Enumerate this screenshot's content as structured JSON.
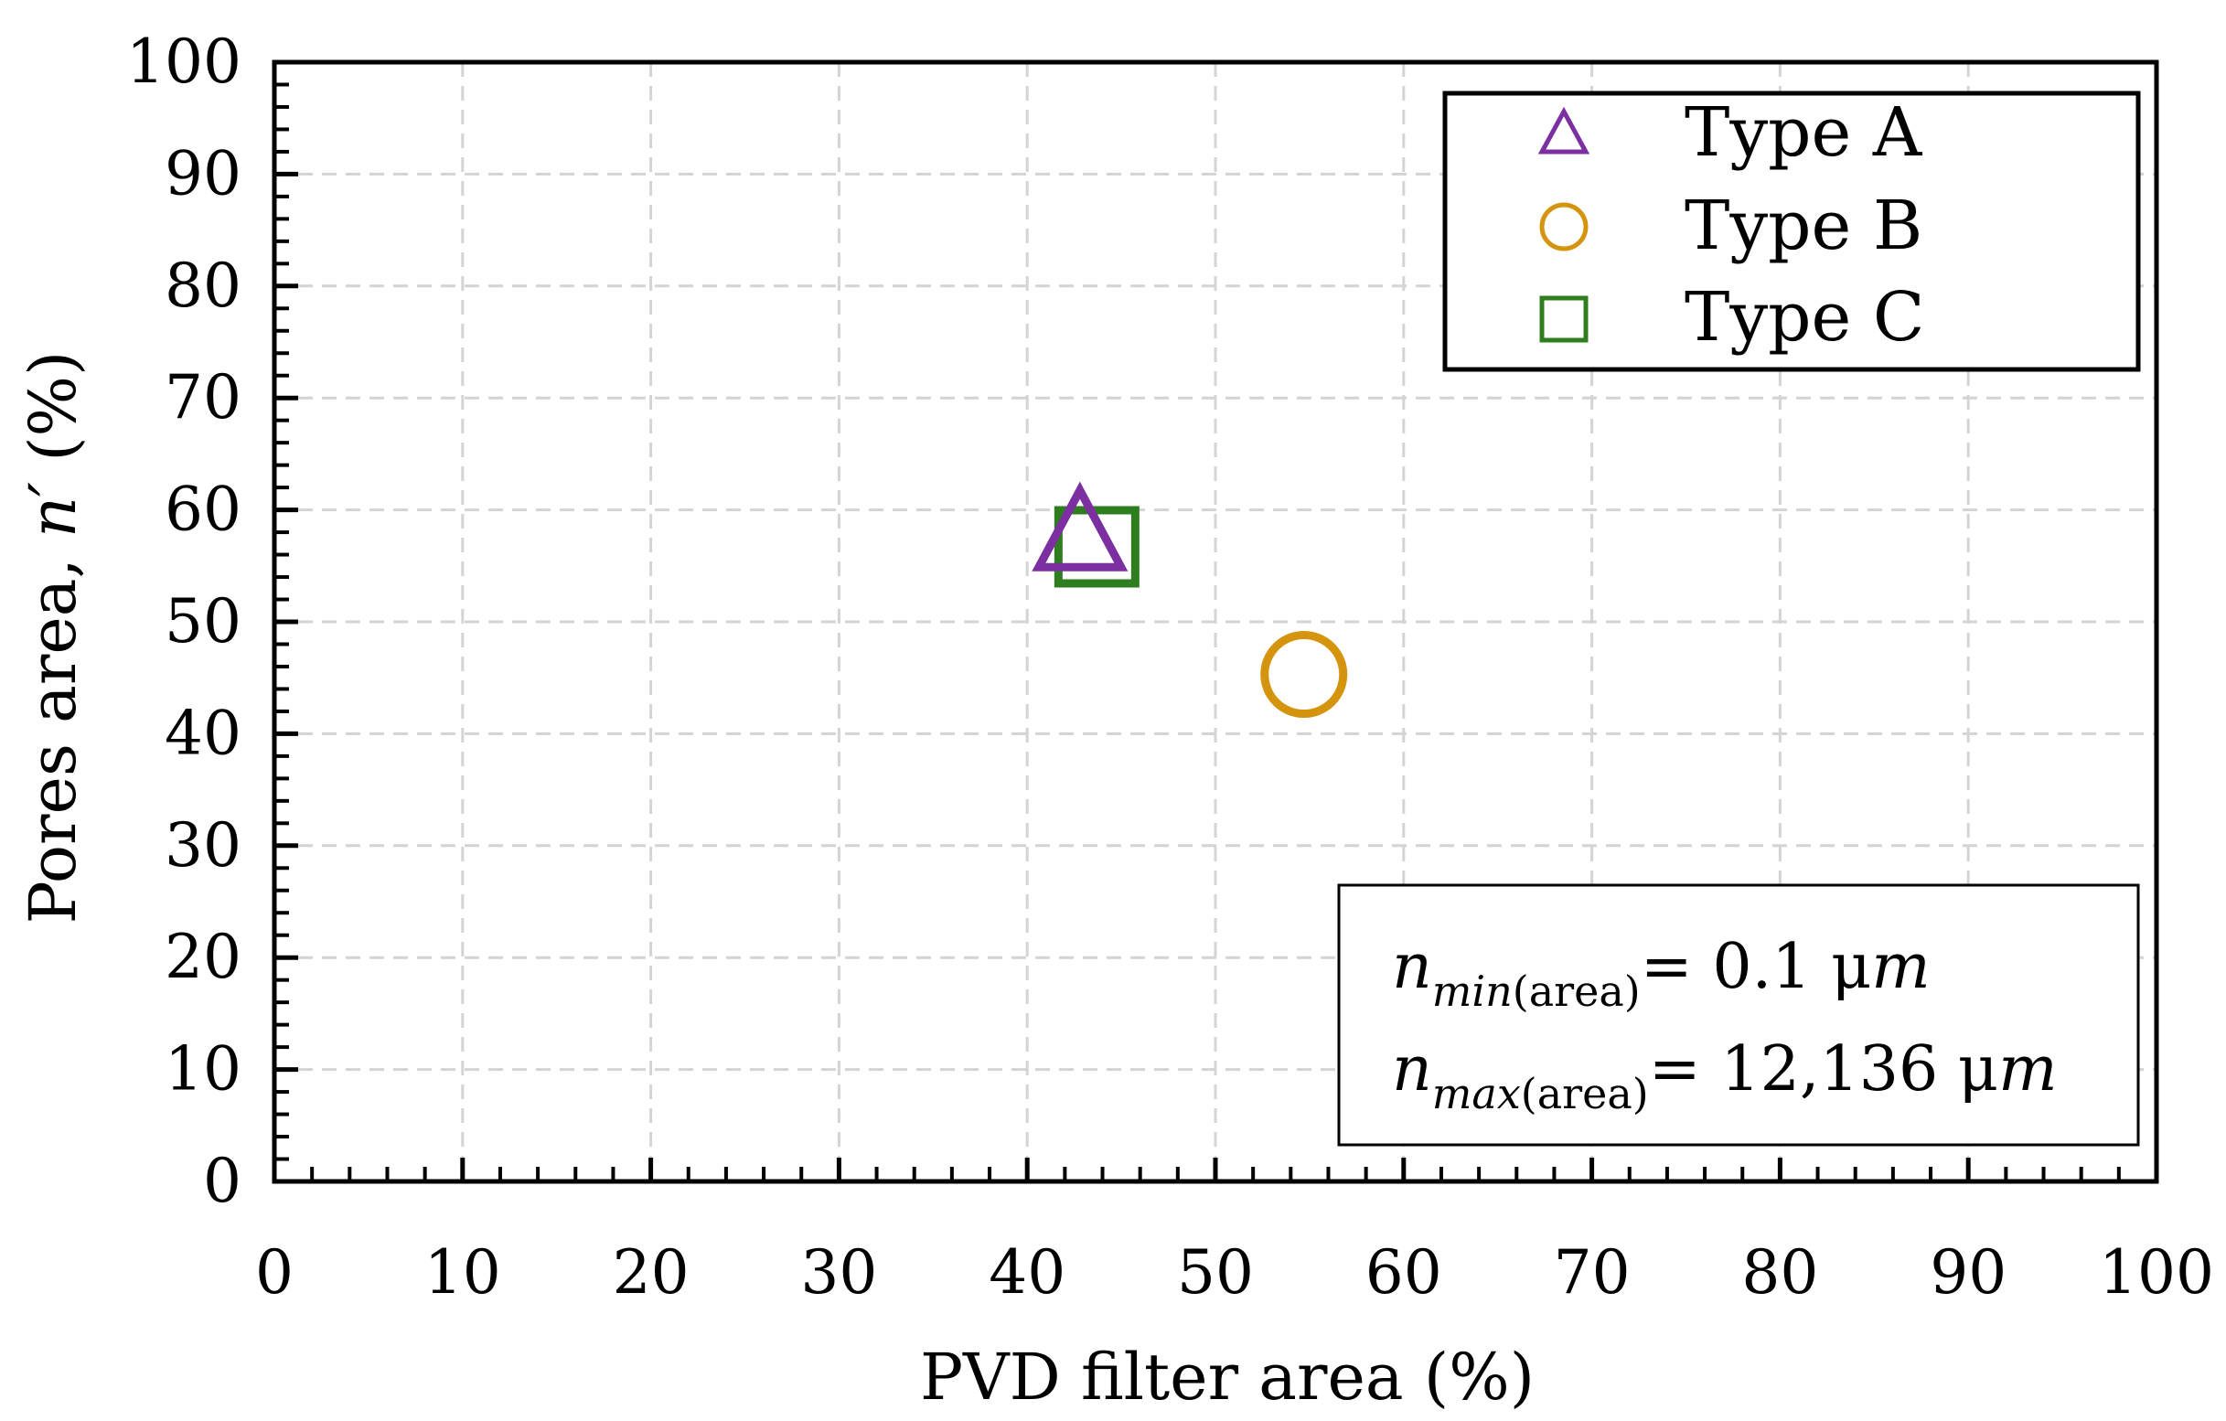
{
  "chart_data": {
    "type": "scatter",
    "xlabel": "PVD filter area (%)",
    "ylabel_main": "Pores area, ",
    "ylabel_var": "n′",
    "ylabel_unit": " (%)",
    "xlim": [
      0,
      100
    ],
    "ylim": [
      0,
      100
    ],
    "x_ticks": [
      0,
      10,
      20,
      30,
      40,
      50,
      60,
      70,
      80,
      90,
      100
    ],
    "y_ticks": [
      0,
      10,
      20,
      30,
      40,
      50,
      60,
      70,
      80,
      90,
      100
    ],
    "grid": true,
    "legend_position": "top-right",
    "series": [
      {
        "name": "Type A",
        "marker": "triangle",
        "color": "#7B2FA0",
        "x": 42.8,
        "y": 57.5
      },
      {
        "name": "Type B",
        "marker": "circle",
        "color": "#D4940E",
        "x": 54.7,
        "y": 45.3
      },
      {
        "name": "Type C",
        "marker": "square",
        "color": "#2E7D1E",
        "x": 43.7,
        "y": 56.7
      }
    ],
    "annotation": {
      "min": {
        "var": "n",
        "sub_italic": "min",
        "sub_rest": "(area)",
        "value": "= 0.1 μ",
        "unit": "m"
      },
      "max": {
        "var": "n",
        "sub_italic": "max",
        "sub_rest": "(area)",
        "value": "= 12,136 μ",
        "unit": "m"
      }
    }
  }
}
